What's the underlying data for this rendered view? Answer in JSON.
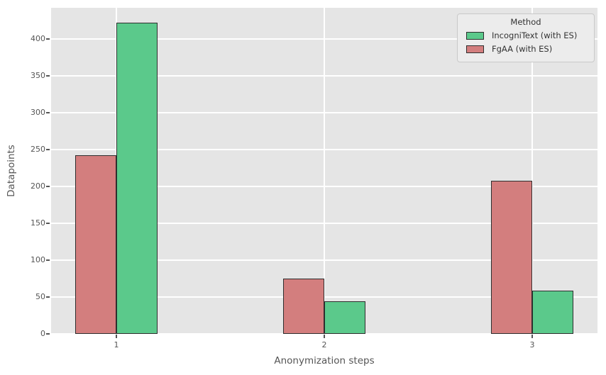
{
  "figure": {
    "background": "#ffffff",
    "axes_background": "#e5e5e5",
    "grid_color": "#ffffff",
    "text_color": "#555555",
    "bar_edge_color": "#2e2e2e"
  },
  "chart_data": {
    "type": "bar",
    "title": "",
    "xlabel": "Anonymization steps",
    "ylabel": "Datapoints",
    "categories": [
      "1",
      "2",
      "3"
    ],
    "series": [
      {
        "name": "FgAA (with ES)",
        "color": "#d37e7e",
        "values": [
          242,
          75,
          208
        ]
      },
      {
        "name": "IncogniText (with ES)",
        "color": "#5bc98b",
        "values": [
          422,
          44,
          59
        ]
      }
    ],
    "series_note": "series listed in left-to-right draw order within each group",
    "yticks": [
      0,
      50,
      100,
      150,
      200,
      250,
      300,
      350,
      400
    ],
    "ylim": [
      0,
      442
    ],
    "grid": true,
    "legend": {
      "title": "Method",
      "position": "upper right",
      "entries": [
        {
          "label": "IncogniText (with ES)",
          "color": "#5bc98b"
        },
        {
          "label": "FgAA (with ES)",
          "color": "#d37e7e"
        }
      ]
    }
  }
}
